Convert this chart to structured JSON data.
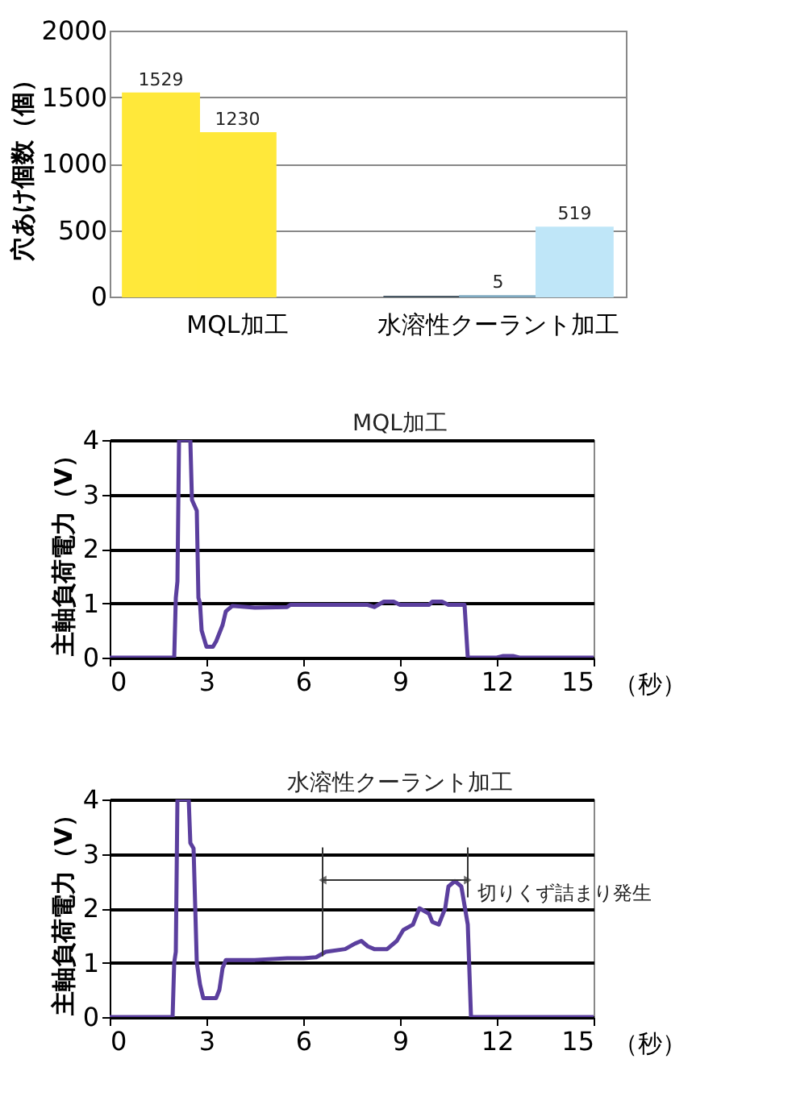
{
  "chart_data": [
    {
      "type": "bar",
      "ylabel": "穴あけ個数（個）",
      "categories": [
        "MQL加工",
        "水溶性クーラント加工"
      ],
      "ylim": [
        0,
        2000
      ],
      "yticks": [
        0,
        500,
        1000,
        1500,
        2000
      ],
      "grid": "y",
      "series": [
        {
          "colors": [
            "#ffe83a",
            "#4a5a66"
          ],
          "values": [
            1529,
            0
          ],
          "value_labels": [
            "1529",
            null
          ]
        },
        {
          "colors": [
            "#ffe83a",
            "#7fa9c0"
          ],
          "values": [
            1230,
            5
          ],
          "value_labels": [
            "1230",
            "5"
          ]
        },
        {
          "colors": [
            "#ffe83a",
            "#bfe6f8"
          ],
          "values": [
            null,
            519
          ],
          "value_labels": [
            null,
            "519"
          ]
        }
      ]
    },
    {
      "type": "line",
      "ylabel": "主軸負荷電力（V）",
      "xlabel": "（秒）",
      "xlim": [
        0,
        15
      ],
      "xticks": [
        0,
        3,
        6,
        9,
        12,
        15
      ],
      "ylim": [
        0,
        4
      ],
      "yticks": [
        0,
        1,
        2,
        3,
        4
      ],
      "grid": "y",
      "annotations": [
        "MQL加工"
      ],
      "series": [
        {
          "color": "#5b3f9e",
          "x": [
            0,
            1.1,
            2.0,
            2.05,
            2.1,
            2.15,
            2.5,
            2.55,
            2.7,
            2.75,
            2.8,
            2.85,
            3.0,
            3.2,
            3.3,
            3.5,
            3.6,
            3.8,
            4.5,
            5.5,
            5.6,
            8.0,
            8.2,
            8.5,
            8.8,
            9.0,
            9.9,
            10.0,
            10.3,
            10.5,
            11.0,
            11.1,
            12.0,
            12.2,
            12.5,
            12.7,
            15
          ],
          "values": [
            0,
            0,
            0,
            1.1,
            1.4,
            4,
            4,
            2.9,
            2.7,
            1.1,
            1.0,
            0.5,
            0.2,
            0.2,
            0.3,
            0.6,
            0.85,
            0.95,
            0.92,
            0.93,
            0.97,
            0.97,
            0.93,
            1.03,
            1.03,
            0.97,
            0.97,
            1.03,
            1.03,
            0.97,
            0.97,
            0,
            0,
            0.03,
            0.03,
            0,
            0
          ]
        }
      ]
    },
    {
      "type": "line",
      "ylabel": "主軸負荷電力（V）",
      "xlabel": "（秒）",
      "xlim": [
        0,
        15
      ],
      "xticks": [
        0,
        3,
        6,
        9,
        12,
        15
      ],
      "ylim": [
        0,
        4
      ],
      "yticks": [
        0,
        1,
        2,
        3,
        4
      ],
      "grid": "y",
      "annotations": [
        "水溶性クーラント加工"
      ],
      "ref_lines": [
        {
          "axis": "x",
          "value": 6.6,
          "label": null,
          "color": "#333333"
        },
        {
          "axis": "x",
          "value": 11.1,
          "label": "切りくず詰まり発生",
          "color": "#333333"
        }
      ],
      "series": [
        {
          "color": "#5b3f9e",
          "x": [
            0,
            1.95,
            2.0,
            2.05,
            2.1,
            2.45,
            2.5,
            2.6,
            2.7,
            2.8,
            2.9,
            3.3,
            3.4,
            3.5,
            3.6,
            4.5,
            5.5,
            6.0,
            6.4,
            6.7,
            7.3,
            7.6,
            7.8,
            8.0,
            8.2,
            8.6,
            8.9,
            9.1,
            9.4,
            9.6,
            9.9,
            10.0,
            10.2,
            10.4,
            10.5,
            10.7,
            10.9,
            11.1,
            11.2,
            15
          ],
          "values": [
            0,
            0,
            1.0,
            1.2,
            4,
            4,
            3.2,
            3.1,
            1.0,
            0.6,
            0.35,
            0.35,
            0.5,
            0.9,
            1.05,
            1.05,
            1.08,
            1.08,
            1.1,
            1.2,
            1.25,
            1.35,
            1.4,
            1.3,
            1.25,
            1.25,
            1.4,
            1.6,
            1.7,
            2.0,
            1.9,
            1.75,
            1.7,
            2.0,
            2.4,
            2.5,
            2.4,
            1.7,
            0,
            0
          ]
        }
      ]
    }
  ]
}
